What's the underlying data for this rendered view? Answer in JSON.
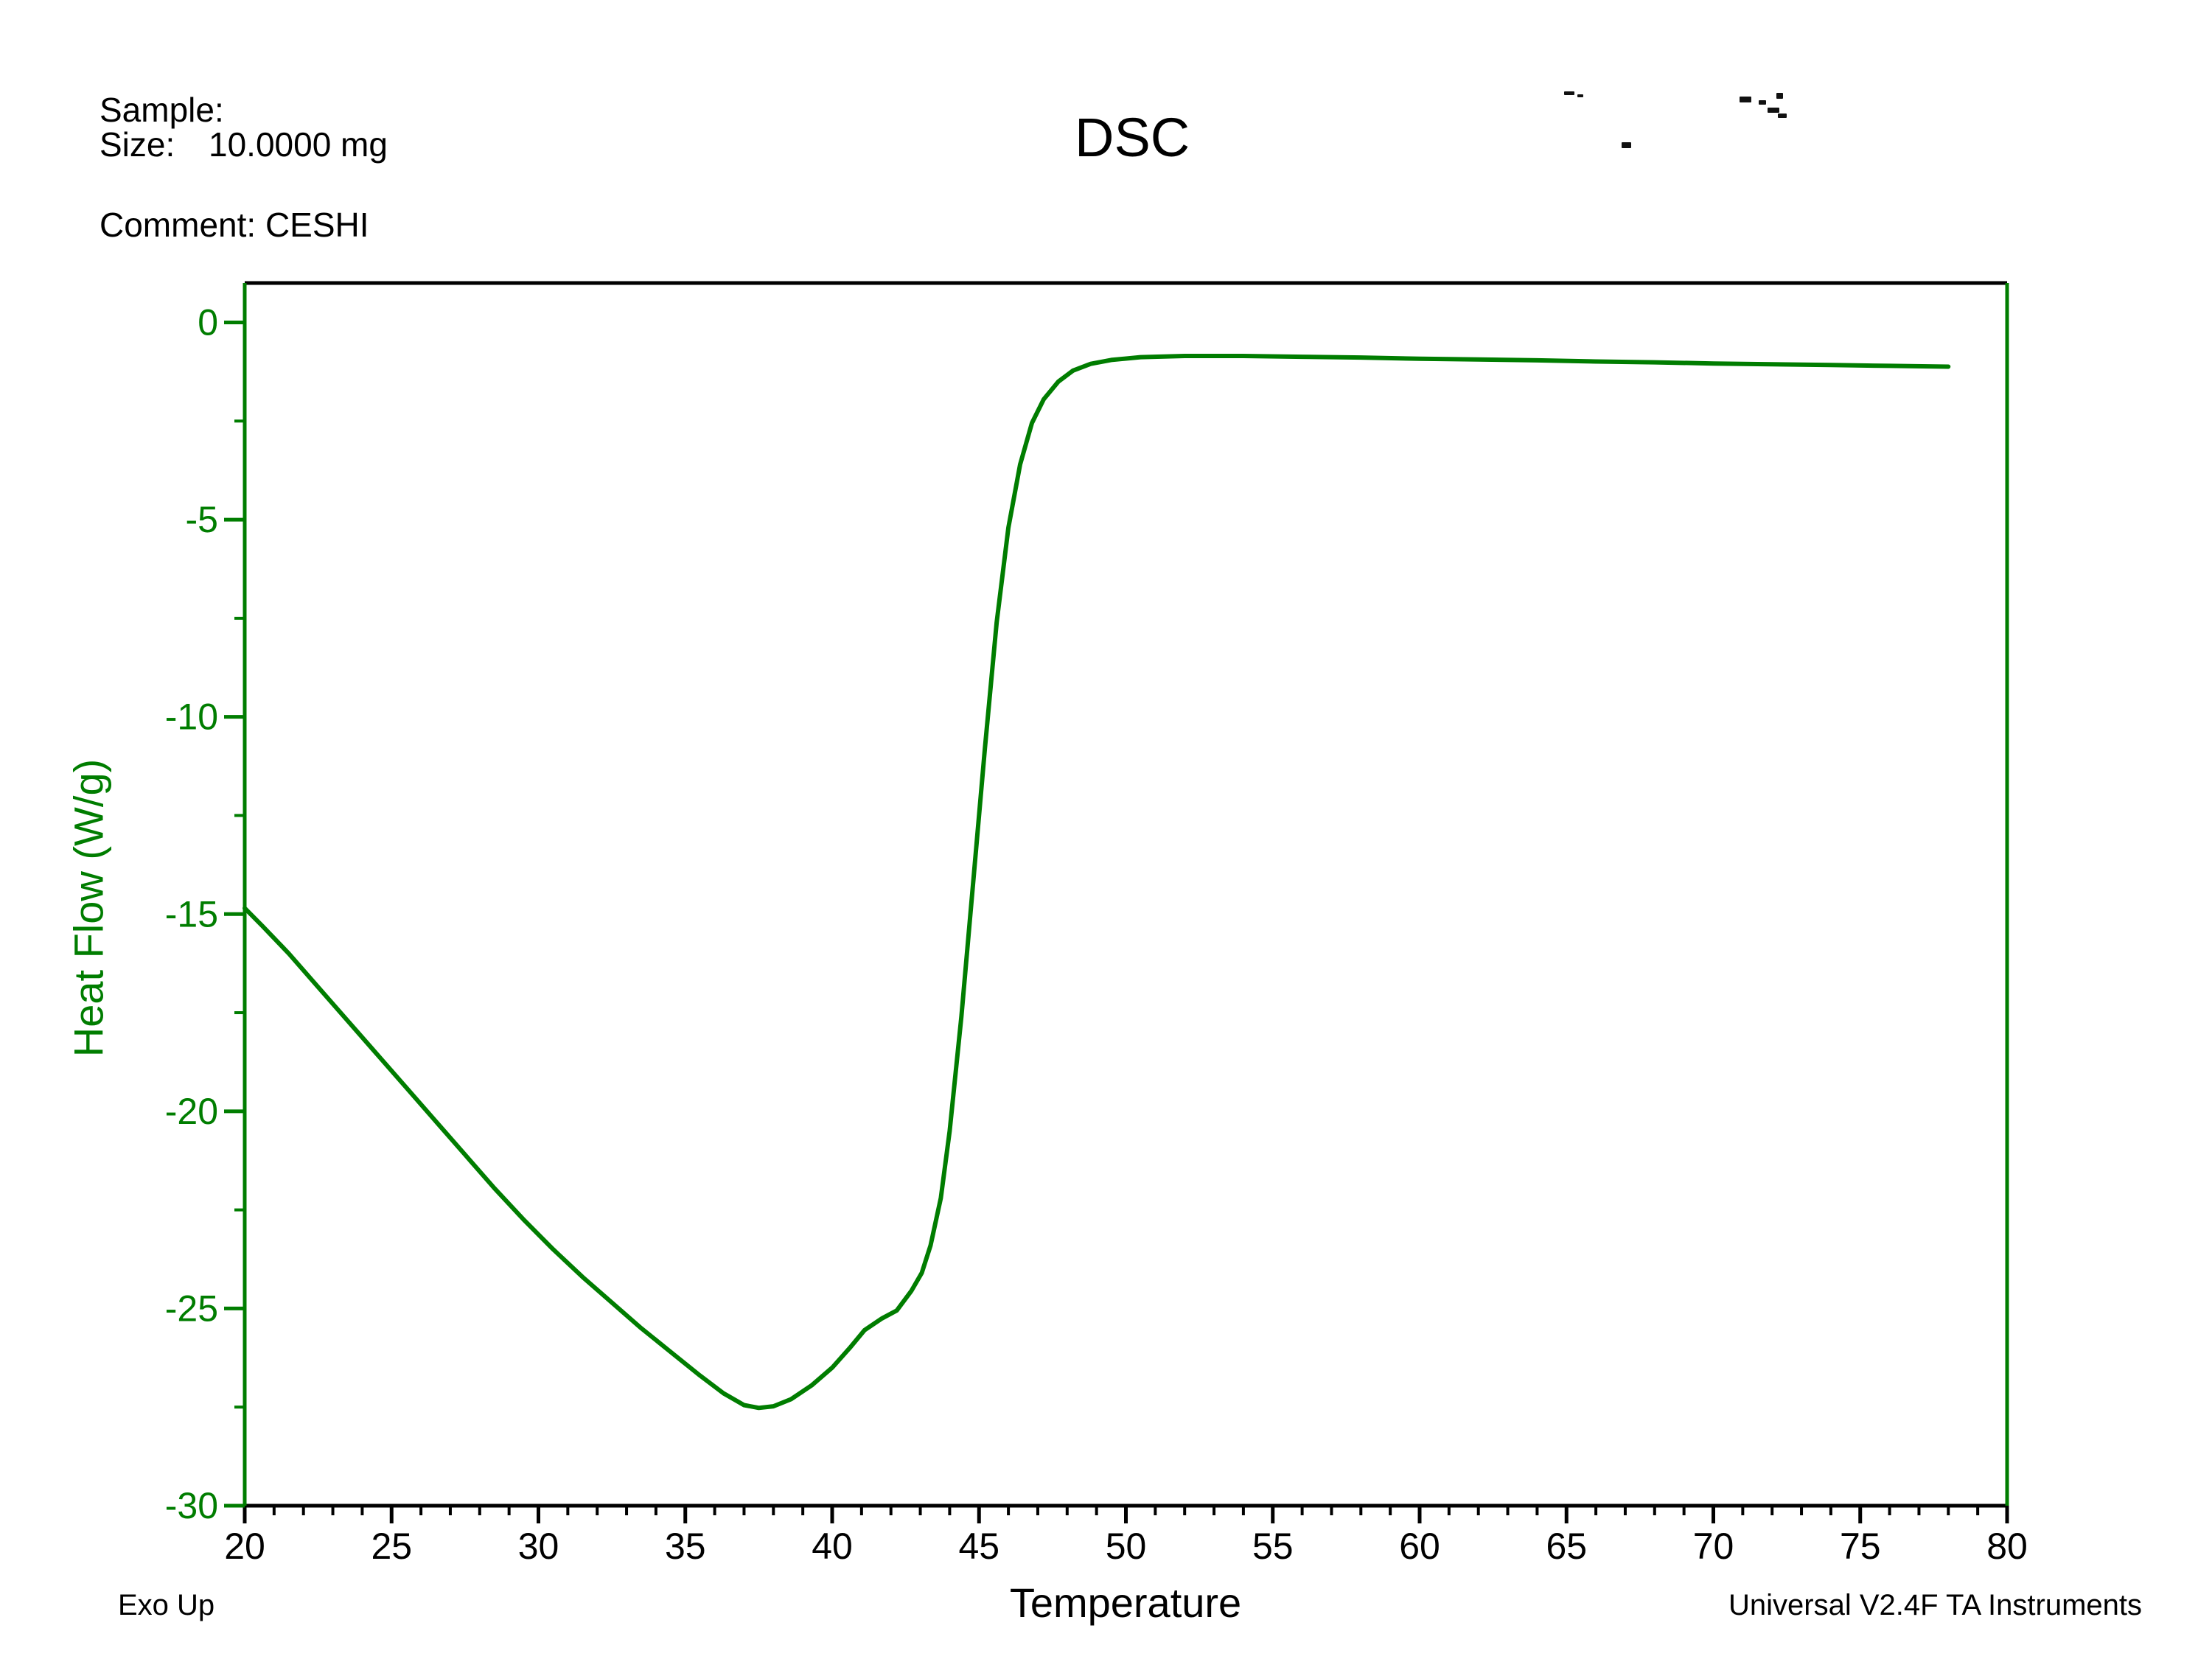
{
  "header": {
    "sample_label": "Sample:",
    "size_label": "Size:",
    "size_value": "10.0000 mg",
    "comment_label": "Comment:",
    "comment_value": "CESHI",
    "title": "DSC"
  },
  "footer": {
    "exo_up": "Exo Up",
    "credit": "Universal V2.4F TA Instruments"
  },
  "chart_data": {
    "type": "line",
    "title": "DSC",
    "xlabel": "Temperature",
    "ylabel": "Heat Flow (W/g)",
    "xlim": [
      20,
      80
    ],
    "ylim": [
      -30,
      1.0
    ],
    "x_major_ticks": [
      20,
      25,
      30,
      35,
      40,
      45,
      50,
      55,
      60,
      65,
      70,
      75,
      80
    ],
    "x_minor_step": 1,
    "y_major_ticks": [
      0,
      -5,
      -10,
      -15,
      -20,
      -25,
      -30
    ],
    "y_minor_step": 2.5,
    "grid": false,
    "legend": false,
    "axis_color": "#007D00",
    "frame_color": "#000000",
    "line_color": "#007D00",
    "series": [
      {
        "name": "Heat Flow",
        "points": [
          [
            20.0,
            -14.85
          ],
          [
            20.6,
            -15.3
          ],
          [
            21.5,
            -16.0
          ],
          [
            22.5,
            -16.85
          ],
          [
            23.5,
            -17.7
          ],
          [
            24.5,
            -18.55
          ],
          [
            25.5,
            -19.4
          ],
          [
            26.5,
            -20.25
          ],
          [
            27.5,
            -21.1
          ],
          [
            28.5,
            -21.95
          ],
          [
            29.5,
            -22.75
          ],
          [
            30.5,
            -23.5
          ],
          [
            31.5,
            -24.2
          ],
          [
            32.5,
            -24.85
          ],
          [
            33.5,
            -25.5
          ],
          [
            34.5,
            -26.1
          ],
          [
            35.5,
            -26.7
          ],
          [
            36.3,
            -27.15
          ],
          [
            37.0,
            -27.45
          ],
          [
            37.5,
            -27.52
          ],
          [
            38.0,
            -27.48
          ],
          [
            38.6,
            -27.3
          ],
          [
            39.3,
            -26.95
          ],
          [
            40.0,
            -26.5
          ],
          [
            40.6,
            -26.0
          ],
          [
            41.1,
            -25.55
          ],
          [
            41.7,
            -25.25
          ],
          [
            42.2,
            -25.05
          ],
          [
            42.7,
            -24.55
          ],
          [
            43.05,
            -24.1
          ],
          [
            43.35,
            -23.4
          ],
          [
            43.7,
            -22.2
          ],
          [
            44.0,
            -20.5
          ],
          [
            44.4,
            -17.6
          ],
          [
            44.8,
            -14.2
          ],
          [
            45.2,
            -10.8
          ],
          [
            45.6,
            -7.6
          ],
          [
            46.0,
            -5.2
          ],
          [
            46.4,
            -3.6
          ],
          [
            46.8,
            -2.55
          ],
          [
            47.2,
            -1.95
          ],
          [
            47.7,
            -1.5
          ],
          [
            48.2,
            -1.22
          ],
          [
            48.8,
            -1.05
          ],
          [
            49.5,
            -0.95
          ],
          [
            50.5,
            -0.88
          ],
          [
            52.0,
            -0.85
          ],
          [
            54.0,
            -0.85
          ],
          [
            56.0,
            -0.87
          ],
          [
            58.0,
            -0.89
          ],
          [
            60.0,
            -0.92
          ],
          [
            62.0,
            -0.94
          ],
          [
            64.0,
            -0.96
          ],
          [
            66.0,
            -0.99
          ],
          [
            68.0,
            -1.01
          ],
          [
            70.0,
            -1.04
          ],
          [
            72.0,
            -1.06
          ],
          [
            74.0,
            -1.08
          ],
          [
            76.0,
            -1.1
          ],
          [
            78.0,
            -1.12
          ]
        ]
      }
    ]
  },
  "artifacts": {
    "specks": [
      [
        2122,
        124,
        14,
        5
      ],
      [
        2140,
        128,
        8,
        4
      ],
      [
        2360,
        131,
        16,
        8
      ],
      [
        2386,
        136,
        10,
        6
      ],
      [
        2410,
        126,
        9,
        8
      ],
      [
        2398,
        146,
        16,
        7
      ],
      [
        2412,
        154,
        12,
        6
      ],
      [
        2200,
        193,
        13,
        8
      ]
    ]
  }
}
